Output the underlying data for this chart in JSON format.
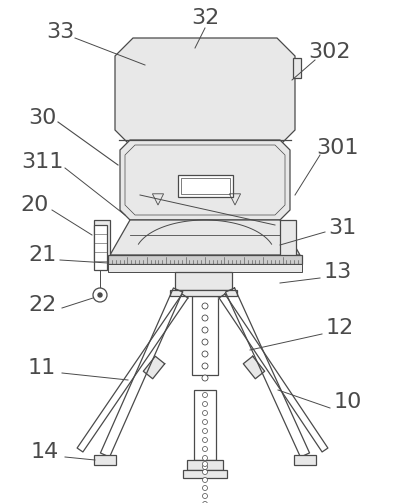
{
  "bg_color": "#ffffff",
  "line_color": "#4a4a4a",
  "fill_light": "#e8e8e8",
  "fill_mid": "#d0d0d0",
  "figsize": [
    3.95,
    5.03
  ],
  "dpi": 100,
  "label_fontsize": 16
}
